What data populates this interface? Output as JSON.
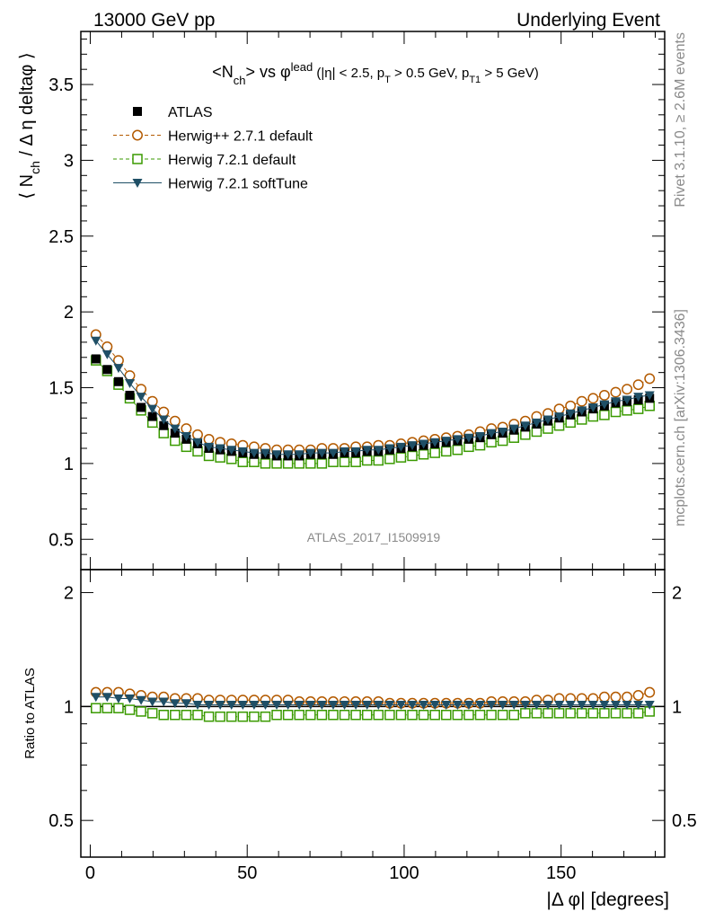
{
  "header": {
    "left": "13000 GeV pp",
    "right": "Underlying Event"
  },
  "side_text": {
    "top": "Rivet 3.1.10, ≥ 2.6M events",
    "bottom": "mcplots.cern.ch [arXiv:1306.3436]"
  },
  "watermark": "ATLAS_2017_I1509919",
  "chart_data": [
    {
      "type": "scatter",
      "panel": "main",
      "title": "<N_ch> vs φ^lead (|η| < 2.5, p_T > 0.5 GeV, p_T1 > 5 GeV)",
      "ylabel": "⟨ N_ch / Δ η deltaφ ⟩",
      "xlim": [
        -3,
        183
      ],
      "ylim": [
        0.3,
        3.85
      ],
      "yticks": [
        "0.5",
        "1",
        "1.5",
        "2",
        "2.5",
        "3",
        "3.5"
      ],
      "legend_position": "top-left",
      "x": [
        1.8,
        5.4,
        9.0,
        12.6,
        16.2,
        19.8,
        23.4,
        27.0,
        30.6,
        34.2,
        37.8,
        41.4,
        45.0,
        48.6,
        52.2,
        55.8,
        59.4,
        63.0,
        66.6,
        70.2,
        73.8,
        77.4,
        81.0,
        84.6,
        88.2,
        91.8,
        95.4,
        99.0,
        102.6,
        106.2,
        109.8,
        113.4,
        117.0,
        120.6,
        124.2,
        127.8,
        131.4,
        135.0,
        138.6,
        142.2,
        145.8,
        149.4,
        153.0,
        156.6,
        160.2,
        163.8,
        167.4,
        171.0,
        174.6,
        178.2
      ],
      "series": [
        {
          "name": "ATLAS",
          "color": "#000000",
          "marker": "filled-square",
          "values": [
            1.69,
            1.62,
            1.54,
            1.45,
            1.37,
            1.31,
            1.25,
            1.2,
            1.16,
            1.13,
            1.1,
            1.09,
            1.08,
            1.07,
            1.06,
            1.06,
            1.05,
            1.05,
            1.05,
            1.06,
            1.06,
            1.06,
            1.07,
            1.07,
            1.08,
            1.08,
            1.09,
            1.1,
            1.11,
            1.12,
            1.13,
            1.14,
            1.15,
            1.16,
            1.17,
            1.19,
            1.2,
            1.22,
            1.24,
            1.26,
            1.28,
            1.3,
            1.32,
            1.34,
            1.36,
            1.38,
            1.4,
            1.41,
            1.42,
            1.43
          ]
        },
        {
          "name": "Herwig++ 2.7.1 default",
          "color": "#b35a00",
          "marker": "open-circle",
          "values": [
            1.85,
            1.77,
            1.68,
            1.58,
            1.49,
            1.41,
            1.34,
            1.28,
            1.23,
            1.19,
            1.16,
            1.14,
            1.13,
            1.12,
            1.11,
            1.1,
            1.09,
            1.09,
            1.09,
            1.09,
            1.1,
            1.1,
            1.1,
            1.11,
            1.11,
            1.12,
            1.12,
            1.13,
            1.14,
            1.15,
            1.16,
            1.17,
            1.18,
            1.19,
            1.21,
            1.23,
            1.24,
            1.26,
            1.28,
            1.31,
            1.33,
            1.36,
            1.38,
            1.41,
            1.43,
            1.45,
            1.47,
            1.49,
            1.52,
            1.56
          ]
        },
        {
          "name": "Herwig 7.2.1 default",
          "color": "#3a9a00",
          "marker": "open-square",
          "values": [
            1.68,
            1.61,
            1.52,
            1.43,
            1.35,
            1.27,
            1.2,
            1.15,
            1.11,
            1.08,
            1.05,
            1.04,
            1.03,
            1.01,
            1.01,
            1.0,
            1.0,
            1.0,
            1.0,
            1.0,
            1.0,
            1.01,
            1.01,
            1.01,
            1.02,
            1.02,
            1.03,
            1.04,
            1.05,
            1.06,
            1.07,
            1.08,
            1.09,
            1.11,
            1.12,
            1.14,
            1.15,
            1.17,
            1.19,
            1.21,
            1.23,
            1.25,
            1.27,
            1.29,
            1.31,
            1.32,
            1.34,
            1.35,
            1.36,
            1.38
          ]
        },
        {
          "name": "Herwig 7.2.1 softTune",
          "color": "#1f4f66",
          "marker": "filled-triangle-down",
          "values": [
            1.81,
            1.72,
            1.63,
            1.53,
            1.44,
            1.36,
            1.29,
            1.23,
            1.18,
            1.14,
            1.11,
            1.1,
            1.09,
            1.08,
            1.07,
            1.07,
            1.06,
            1.06,
            1.06,
            1.07,
            1.07,
            1.07,
            1.08,
            1.08,
            1.09,
            1.09,
            1.1,
            1.11,
            1.12,
            1.13,
            1.14,
            1.15,
            1.16,
            1.17,
            1.18,
            1.2,
            1.21,
            1.23,
            1.25,
            1.27,
            1.29,
            1.31,
            1.33,
            1.35,
            1.37,
            1.39,
            1.41,
            1.42,
            1.44,
            1.45
          ]
        }
      ]
    },
    {
      "type": "scatter",
      "panel": "ratio",
      "xlabel": "|Δ φ| [degrees]",
      "ylabel": "Ratio to ATLAS",
      "xlim": [
        -3,
        183
      ],
      "ylim": [
        0.4,
        2.3
      ],
      "log_y": true,
      "xticks": [
        "0",
        "50",
        "100",
        "150"
      ],
      "yticks": [
        "0.5",
        "1",
        "2"
      ],
      "x": [
        1.8,
        5.4,
        9.0,
        12.6,
        16.2,
        19.8,
        23.4,
        27.0,
        30.6,
        34.2,
        37.8,
        41.4,
        45.0,
        48.6,
        52.2,
        55.8,
        59.4,
        63.0,
        66.6,
        70.2,
        73.8,
        77.4,
        81.0,
        84.6,
        88.2,
        91.8,
        95.4,
        99.0,
        102.6,
        106.2,
        109.8,
        113.4,
        117.0,
        120.6,
        124.2,
        127.8,
        131.4,
        135.0,
        138.6,
        142.2,
        145.8,
        149.4,
        153.0,
        156.6,
        160.2,
        163.8,
        167.4,
        171.0,
        174.6,
        178.2
      ],
      "series": [
        {
          "name": "Herwig++ 2.7.1 default",
          "color": "#b35a00",
          "marker": "open-circle",
          "values": [
            1.09,
            1.09,
            1.09,
            1.08,
            1.07,
            1.06,
            1.06,
            1.05,
            1.05,
            1.05,
            1.04,
            1.04,
            1.04,
            1.04,
            1.04,
            1.04,
            1.04,
            1.04,
            1.03,
            1.03,
            1.03,
            1.03,
            1.03,
            1.03,
            1.03,
            1.03,
            1.02,
            1.02,
            1.02,
            1.02,
            1.02,
            1.02,
            1.02,
            1.02,
            1.02,
            1.03,
            1.03,
            1.03,
            1.03,
            1.04,
            1.04,
            1.05,
            1.05,
            1.05,
            1.05,
            1.06,
            1.06,
            1.06,
            1.07,
            1.09
          ]
        },
        {
          "name": "Herwig 7.2.1 default",
          "color": "#3a9a00",
          "marker": "open-square",
          "values": [
            0.99,
            0.99,
            0.99,
            0.98,
            0.97,
            0.96,
            0.95,
            0.95,
            0.95,
            0.95,
            0.94,
            0.94,
            0.94,
            0.94,
            0.94,
            0.94,
            0.95,
            0.95,
            0.95,
            0.95,
            0.95,
            0.95,
            0.95,
            0.95,
            0.95,
            0.95,
            0.95,
            0.95,
            0.95,
            0.95,
            0.95,
            0.95,
            0.95,
            0.95,
            0.95,
            0.95,
            0.95,
            0.95,
            0.96,
            0.96,
            0.96,
            0.96,
            0.96,
            0.96,
            0.96,
            0.96,
            0.96,
            0.96,
            0.96,
            0.97
          ]
        },
        {
          "name": "Herwig 7.2.1 softTune",
          "color": "#1f4f66",
          "marker": "filled-triangle-down",
          "values": [
            1.06,
            1.06,
            1.05,
            1.05,
            1.04,
            1.03,
            1.03,
            1.02,
            1.02,
            1.01,
            1.01,
            1.01,
            1.01,
            1.01,
            1.01,
            1.01,
            1.01,
            1.01,
            1.01,
            1.01,
            1.01,
            1.01,
            1.01,
            1.01,
            1.01,
            1.01,
            1.01,
            1.01,
            1.01,
            1.01,
            1.01,
            1.01,
            1.01,
            1.01,
            1.01,
            1.01,
            1.01,
            1.01,
            1.01,
            1.01,
            1.01,
            1.01,
            1.01,
            1.01,
            1.01,
            1.01,
            1.01,
            1.01,
            1.01,
            1.01
          ]
        }
      ]
    }
  ]
}
